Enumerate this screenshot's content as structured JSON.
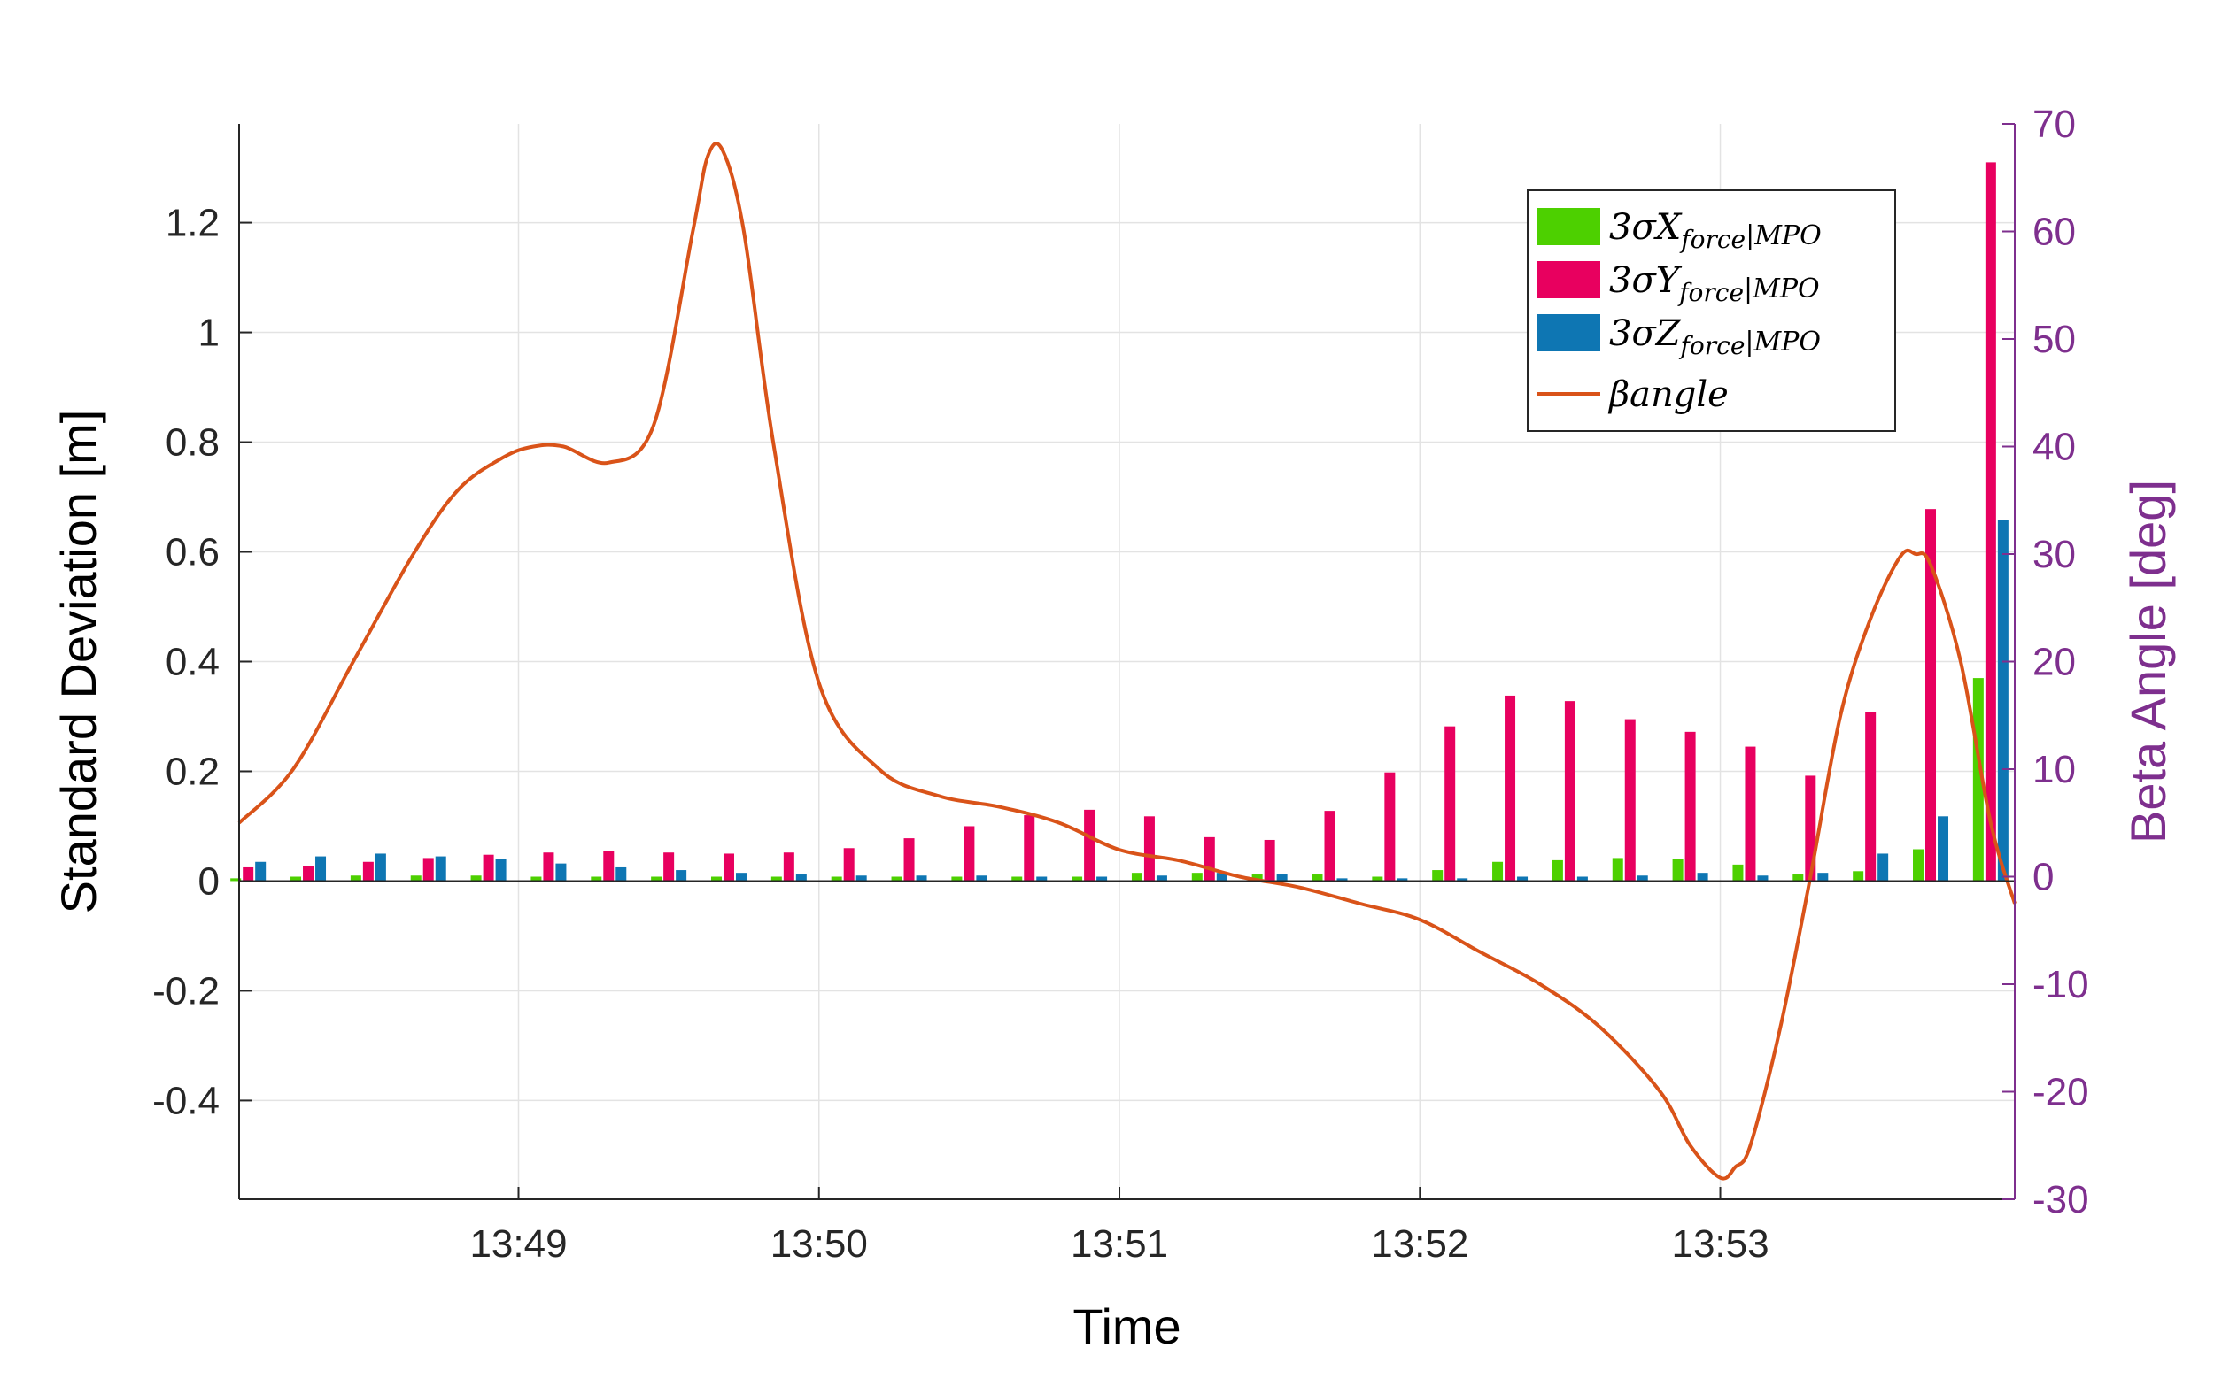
{
  "chart_data": {
    "type": "bar",
    "title": "",
    "xlabel": "Time",
    "ylabel": "Standard Deviation [m]",
    "y2label": "Beta Angle [deg]",
    "ylim": [
      -0.58,
      1.38
    ],
    "y2lim": [
      -30,
      70
    ],
    "yticks": [
      -0.4,
      -0.2,
      0,
      0.2,
      0.4,
      0.6,
      0.8,
      1,
      1.2
    ],
    "ytick_labels": [
      "-0.4",
      "-0.2",
      "0",
      "0.2",
      "0.4",
      "0.6",
      "0.8",
      "1",
      "1.2"
    ],
    "y2ticks": [
      -30,
      -20,
      -10,
      0,
      10,
      20,
      30,
      40,
      50,
      60,
      70
    ],
    "y2tick_labels": [
      "-30",
      "-20",
      "-10",
      "0",
      "10",
      "20",
      "30",
      "40",
      "50",
      "60",
      "70"
    ],
    "xlim_minutes": [
      48.07,
      53.98
    ],
    "xticks_minutes": [
      49,
      50,
      51,
      52,
      53
    ],
    "xtick_labels": [
      "13:49",
      "13:50",
      "13:51",
      "13:52",
      "13:53"
    ],
    "grid": true,
    "legend_position": "top-right",
    "colors": {
      "x_force": "#4DD000",
      "y_force": "#E8005F",
      "z_force": "#0E76B3",
      "beta": "#D95319",
      "right_axis": "#7E2F8E"
    },
    "bar_times_minutes": [
      48.1,
      48.3,
      48.5,
      48.7,
      48.9,
      49.1,
      49.3,
      49.5,
      49.7,
      49.9,
      50.1,
      50.3,
      50.5,
      50.7,
      50.9,
      51.1,
      51.3,
      51.5,
      51.7,
      51.9,
      52.1,
      52.3,
      52.5,
      52.7,
      52.9,
      53.1,
      53.3,
      53.5,
      53.7,
      53.9
    ],
    "series": [
      {
        "name": "3σX_force|MPO",
        "legend_label": "3σX",
        "legend_sub": "force",
        "legend_tail": "|MPO",
        "kind": "bar",
        "values": [
          0.005,
          0.008,
          0.01,
          0.01,
          0.01,
          0.008,
          0.008,
          0.008,
          0.008,
          0.008,
          0.008,
          0.008,
          0.008,
          0.008,
          0.008,
          0.015,
          0.015,
          0.012,
          0.012,
          0.008,
          0.02,
          0.035,
          0.038,
          0.042,
          0.04,
          0.03,
          0.012,
          0.018,
          0.058,
          0.37
        ]
      },
      {
        "name": "3σY_force|MPO",
        "legend_label": "3σY",
        "legend_sub": "force",
        "legend_tail": "|MPO",
        "kind": "bar",
        "values": [
          0.025,
          0.028,
          0.035,
          0.042,
          0.048,
          0.052,
          0.055,
          0.052,
          0.05,
          0.052,
          0.06,
          0.078,
          0.1,
          0.12,
          0.13,
          0.118,
          0.08,
          0.075,
          0.128,
          0.198,
          0.282,
          0.338,
          0.328,
          0.295,
          0.272,
          0.245,
          0.192,
          0.308,
          0.678,
          1.31
        ]
      },
      {
        "name": "3σZ_force|MPO",
        "legend_label": "3σZ",
        "legend_sub": "force",
        "legend_tail": "|MPO",
        "kind": "bar",
        "values": [
          0.035,
          0.045,
          0.05,
          0.045,
          0.04,
          0.032,
          0.025,
          0.02,
          0.015,
          0.012,
          0.01,
          0.01,
          0.01,
          0.008,
          0.008,
          0.01,
          0.015,
          0.012,
          0.005,
          0.005,
          0.005,
          0.008,
          0.008,
          0.01,
          0.015,
          0.01,
          0.015,
          0.05,
          0.118,
          0.658
        ]
      },
      {
        "name": "βangle",
        "legend_label": "βangle",
        "kind": "line",
        "axis": "right",
        "x_minutes": [
          48.07,
          48.25,
          48.45,
          48.65,
          48.8,
          48.95,
          49.05,
          49.15,
          49.3,
          49.45,
          49.58,
          49.63,
          49.68,
          49.75,
          49.85,
          50.0,
          50.2,
          50.4,
          50.6,
          50.8,
          51.0,
          51.2,
          51.4,
          51.6,
          51.8,
          52.0,
          52.2,
          52.4,
          52.6,
          52.8,
          52.9,
          53.0,
          53.05,
          53.1,
          53.2,
          53.3,
          53.4,
          53.5,
          53.6,
          53.65,
          53.7,
          53.8,
          53.9,
          53.98
        ],
        "values": [
          5,
          10,
          20,
          30,
          36,
          39,
          40,
          40,
          38.5,
          42,
          60,
          67,
          67.5,
          60,
          40,
          18,
          10,
          7.5,
          6.5,
          5,
          2.5,
          1.5,
          0,
          -1,
          -2.5,
          -4,
          -7,
          -10,
          -14,
          -20,
          -25,
          -28,
          -27,
          -25,
          -14,
          0,
          15,
          24,
          29.8,
          30,
          29,
          20,
          5,
          -2.5
        ]
      }
    ]
  }
}
